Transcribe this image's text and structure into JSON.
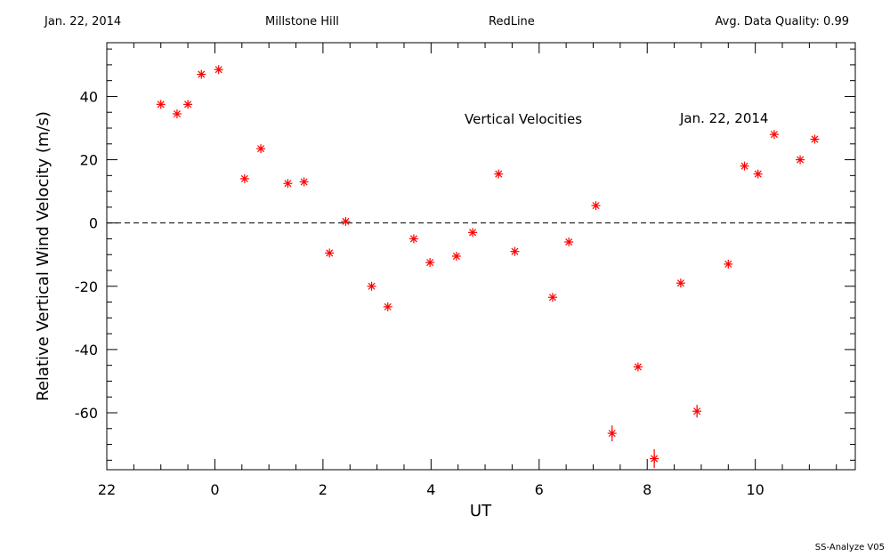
{
  "header": {
    "date": "Jan. 22, 2014",
    "site": "Millstone Hill",
    "instrument": "RedLine",
    "quality": "Avg. Data Quality: 0.99"
  },
  "footer": {
    "software": "SS-Analyze V05"
  },
  "colors": {
    "points": "#ff0000",
    "axes": "#000000",
    "background": "#ffffff"
  },
  "chart_data": {
    "type": "scatter",
    "xlabel": "UT",
    "ylabel": "Relative Vertical Wind Velocity (m/s)",
    "annotations": [
      "Vertical Velocities",
      "Jan. 22, 2014"
    ],
    "xlim": [
      -2.0,
      11.85
    ],
    "ylim": [
      -78,
      57
    ],
    "x_ticks": [
      22,
      0,
      2,
      4,
      6,
      8,
      10
    ],
    "y_ticks": [
      40,
      20,
      0,
      -20,
      -40,
      -60
    ],
    "zero_line": 0,
    "grid": false,
    "series": [
      {
        "marker": "asterisk",
        "x": [
          -0.5,
          -1.0,
          -0.7,
          -0.25,
          0.07,
          0.55,
          0.85,
          1.35,
          1.65,
          2.12,
          2.42,
          2.9,
          3.2,
          3.68,
          3.98,
          4.47,
          4.77,
          5.25,
          5.55,
          6.25,
          6.55,
          7.05,
          7.35,
          7.83,
          8.13,
          8.62,
          8.92,
          9.5,
          9.8,
          10.05,
          10.35,
          10.83,
          11.1
        ],
        "y": [
          37.5,
          37.5,
          34.5,
          47,
          48.5,
          14,
          23.5,
          12.5,
          13,
          -9.5,
          0.5,
          -20,
          -26.5,
          -5,
          -12.5,
          -10.5,
          -3,
          15.5,
          -9,
          -23.5,
          -6,
          5.5,
          -66.5,
          -45.5,
          -74.5,
          -19,
          -59.5,
          -13,
          18,
          15.5,
          28,
          20,
          26.5
        ],
        "y_error": [
          0,
          0,
          0,
          0,
          0,
          0,
          0,
          0,
          0,
          0,
          0,
          0,
          0,
          0,
          0,
          0,
          0,
          0,
          0,
          0,
          0,
          0,
          2.5,
          0,
          3,
          0,
          2,
          0,
          0,
          0,
          0,
          0,
          0
        ]
      }
    ]
  }
}
